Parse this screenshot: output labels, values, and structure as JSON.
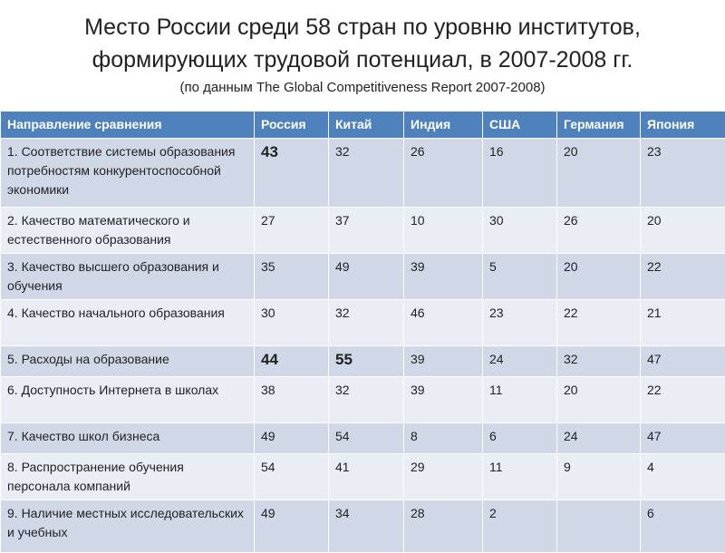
{
  "header": {
    "title_lines": [
      "Место России среди 58 стран по уровню институтов,",
      "формирующих трудовой потенциал, в 2007-2008 гг."
    ],
    "subtitle": "(по данным The Global Competitiveness Report 2007-2008)"
  },
  "table": {
    "columns": [
      "Направление сравнения",
      "Россия",
      "Китай",
      "Индия",
      "США",
      "Германия",
      "Япония"
    ],
    "rows": [
      {
        "label": "1. Соответствие системы образования потребностям конкурентоспособной экономики",
        "values": [
          43,
          32,
          26,
          16,
          20,
          23
        ]
      },
      {
        "label": "2. Качество математического и естественного образования",
        "values": [
          27,
          37,
          10,
          30,
          26,
          20
        ]
      },
      {
        "label": "3. Качество высшего образования и обучения",
        "values": [
          35,
          49,
          39,
          5,
          20,
          22
        ]
      },
      {
        "label": "4. Качество начального образования",
        "values": [
          30,
          32,
          46,
          23,
          22,
          21
        ]
      },
      {
        "label": "5. Расходы на образование",
        "values": [
          44,
          55,
          39,
          24,
          32,
          47
        ]
      },
      {
        "label": "6. Доступность Интернета в школах",
        "values": [
          38,
          32,
          39,
          11,
          20,
          22
        ]
      },
      {
        "label": "7. Качество школ бизнеса",
        "values": [
          49,
          54,
          8,
          6,
          24,
          47
        ]
      },
      {
        "label": "8. Распространение обучения персонала компаний",
        "values": [
          54,
          41,
          29,
          11,
          9,
          4
        ]
      },
      {
        "label": "9. Наличие местных исследовательских и учебных",
        "values": [
          49,
          34,
          28,
          2,
          null,
          6
        ]
      }
    ]
  }
}
